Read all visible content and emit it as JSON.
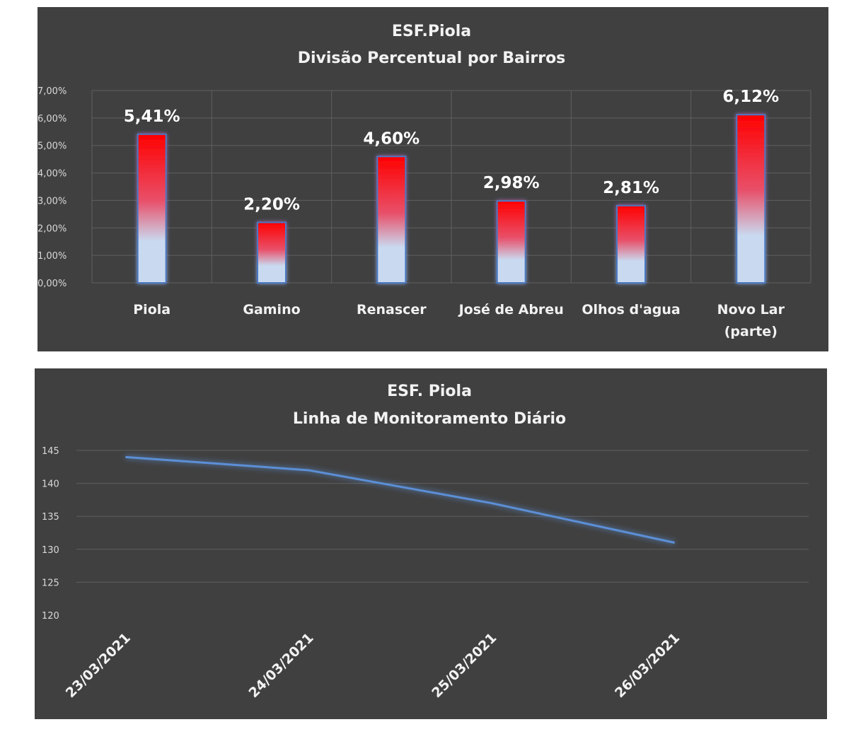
{
  "chart_data": [
    {
      "type": "bar",
      "title": "ESF.Piola",
      "subtitle": "Divisão Percentual por Bairros",
      "categories": [
        "Piola",
        "Gamino",
        "Renascer",
        "José de Abreu",
        "Olhos d'agua",
        "Novo Lar (parte)"
      ],
      "category_lines": [
        [
          "Piola"
        ],
        [
          "Gamino"
        ],
        [
          "Renascer"
        ],
        [
          "José de Abreu"
        ],
        [
          "Olhos d'agua"
        ],
        [
          "Novo Lar",
          "(parte)"
        ]
      ],
      "values": [
        5.41,
        2.2,
        4.6,
        2.98,
        2.81,
        6.12
      ],
      "data_labels": [
        "5,41%",
        "2,20%",
        "4,60%",
        "2,98%",
        "2,81%",
        "6,12%"
      ],
      "ylim": [
        0,
        7
      ],
      "yticks": [
        0,
        1,
        2,
        3,
        4,
        5,
        6,
        7
      ],
      "ytick_labels": [
        "0,00%",
        "1,00%",
        "2,00%",
        "3,00%",
        "4,00%",
        "5,00%",
        "6,00%",
        "7,00%"
      ],
      "grid": true,
      "colors": {
        "background": "#404040",
        "bar_top": "#ff0000",
        "bar_bottom": "#c9daf0",
        "bar_outline": "#4a78c2"
      }
    },
    {
      "type": "line",
      "title": "ESF. Piola",
      "subtitle": "Linha de Monitoramento Diário",
      "x": [
        "23/03/2021",
        "24/03/2021",
        "25/03/2021",
        "26/03/2021"
      ],
      "values": [
        144,
        142,
        137,
        131
      ],
      "ylim": [
        120,
        145
      ],
      "yticks": [
        120,
        125,
        130,
        135,
        140,
        145
      ],
      "ytick_labels": [
        "120",
        "125",
        "130",
        "135",
        "140",
        "145"
      ],
      "grid": true,
      "colors": {
        "background": "#404040",
        "line": "#5b8fd6"
      }
    }
  ]
}
